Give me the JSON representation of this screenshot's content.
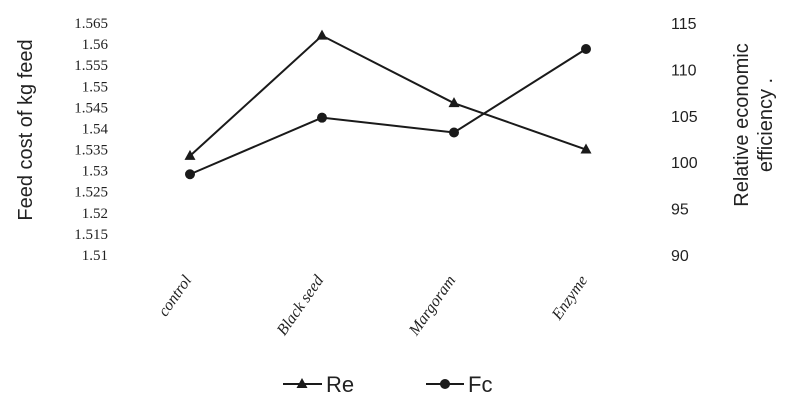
{
  "chart_data": {
    "type": "line",
    "categories": [
      "control",
      "Black seed",
      "Margoram",
      "Enzyme"
    ],
    "y_left": {
      "label": "Feed cost of kg feed",
      "ticks": [
        "1.565",
        "1.56",
        "1.555",
        "1.55",
        "1.545",
        "1.54",
        "1.535",
        "1.53",
        "1.525",
        "1.52",
        "1.515",
        "1.51"
      ],
      "range": [
        1.51,
        1.565
      ]
    },
    "y_right": {
      "label_line1": "Relative economic",
      "label_line2": "efficiency .",
      "ticks": [
        "115",
        "110",
        "105",
        "100",
        "95",
        "90"
      ],
      "range": [
        90,
        115
      ]
    },
    "series": [
      {
        "name": "Re",
        "marker": "triangle",
        "axis": "left",
        "values": [
          1.5335,
          1.562,
          1.546,
          1.535
        ]
      },
      {
        "name": "Fc",
        "marker": "circle",
        "axis": "right",
        "values": [
          98.7,
          104.8,
          103.2,
          112.2
        ]
      }
    ],
    "legend": {
      "position": "bottom",
      "items": [
        "Re",
        "Fc"
      ]
    },
    "colors": {
      "line": "#1a1a1a",
      "text": "#222222",
      "background": "#ffffff"
    }
  }
}
